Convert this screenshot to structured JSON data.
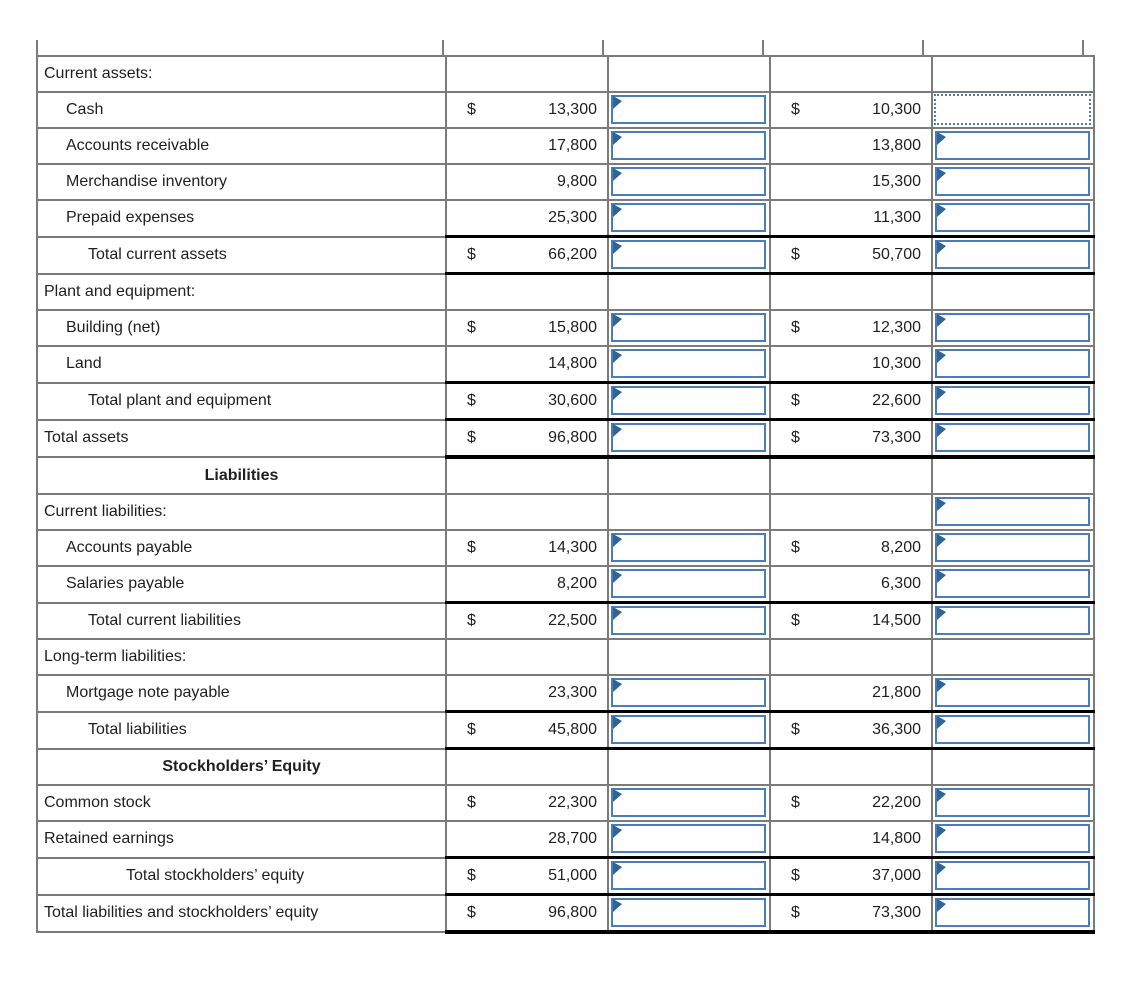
{
  "colors": {
    "grid_line": "#7b7b7b",
    "accounting_rule": "#000000",
    "input_border": "#4a7ebb",
    "input_marker": "#2e6496",
    "active_cell_border": "#4a7ebb",
    "text": "#1f1f1f"
  },
  "table": {
    "columns": [
      "account-label",
      "amount-left",
      "answer-input-left",
      "amount-right",
      "answer-input-right"
    ],
    "rows": [
      {
        "label": "Current assets:",
        "indent": 0,
        "header": false
      },
      {
        "label": "Cash",
        "indent": 1,
        "header": false,
        "left_dollar": "$",
        "left_value": "13,300",
        "mid_input": "solid",
        "right_dollar": "$",
        "right_value": "10,300",
        "end_input": "active"
      },
      {
        "label": "Accounts receivable",
        "indent": 1,
        "header": false,
        "left_value": "17,800",
        "mid_input": "solid",
        "right_value": "13,800",
        "end_input": "solid"
      },
      {
        "label": "Merchandise inventory",
        "indent": 1,
        "header": false,
        "left_value": "9,800",
        "mid_input": "solid",
        "right_value": "15,300",
        "end_input": "solid"
      },
      {
        "label": "Prepaid expenses",
        "indent": 1,
        "header": false,
        "left_value": "25,300",
        "mid_input": "solid",
        "right_value": "11,300",
        "end_input": "solid"
      },
      {
        "label": "Total current assets",
        "indent": 2,
        "header": false,
        "left_dollar": "$",
        "left_value": "66,200",
        "mid_input": "solid",
        "right_dollar": "$",
        "right_value": "50,700",
        "end_input": "solid",
        "top_border": "black",
        "bottom_border": "black"
      },
      {
        "label": "Plant and equipment:",
        "indent": 0,
        "header": false
      },
      {
        "label": "Building (net)",
        "indent": 1,
        "header": false,
        "left_dollar": "$",
        "left_value": "15,800",
        "mid_input": "solid",
        "right_dollar": "$",
        "right_value": "12,300",
        "end_input": "solid"
      },
      {
        "label": "Land",
        "indent": 1,
        "header": false,
        "left_value": "14,800",
        "mid_input": "solid",
        "right_value": "10,300",
        "end_input": "solid"
      },
      {
        "label": "Total plant and equipment",
        "indent": 2,
        "header": false,
        "left_dollar": "$",
        "left_value": "30,600",
        "mid_input": "solid",
        "right_dollar": "$",
        "right_value": "22,600",
        "end_input": "solid",
        "top_border": "black"
      },
      {
        "label": "Total assets",
        "indent": 0,
        "header": false,
        "left_dollar": "$",
        "left_value": "96,800",
        "mid_input": "solid",
        "right_dollar": "$",
        "right_value": "73,300",
        "end_input": "solid",
        "top_border": "black",
        "bottom_border": "thick"
      },
      {
        "label": "Liabilities",
        "indent": 0,
        "header": true
      },
      {
        "label": "Current liabilities:",
        "indent": 0,
        "header": false,
        "end_input": "solid"
      },
      {
        "label": "Accounts payable",
        "indent": 1,
        "header": false,
        "left_dollar": "$",
        "left_value": "14,300",
        "mid_input": "solid",
        "right_dollar": "$",
        "right_value": "8,200",
        "end_input": "solid"
      },
      {
        "label": "Salaries payable",
        "indent": 1,
        "header": false,
        "left_value": "8,200",
        "mid_input": "solid",
        "right_value": "6,300",
        "end_input": "solid"
      },
      {
        "label": "Total current liabilities",
        "indent": 2,
        "header": false,
        "left_dollar": "$",
        "left_value": "22,500",
        "mid_input": "solid",
        "right_dollar": "$",
        "right_value": "14,500",
        "end_input": "solid",
        "top_border": "black"
      },
      {
        "label": "Long-term liabilities:",
        "indent": 0,
        "header": false
      },
      {
        "label": "Mortgage note payable",
        "indent": 1,
        "header": false,
        "left_value": "23,300",
        "mid_input": "solid",
        "right_value": "21,800",
        "end_input": "solid"
      },
      {
        "label": "Total liabilities",
        "indent": 2,
        "header": false,
        "left_dollar": "$",
        "left_value": "45,800",
        "mid_input": "solid",
        "right_dollar": "$",
        "right_value": "36,300",
        "end_input": "solid",
        "top_border": "black",
        "bottom_border": "black"
      },
      {
        "label": "Stockholders’ Equity",
        "indent": 0,
        "header": true
      },
      {
        "label": "Common stock",
        "indent": 0,
        "header": false,
        "left_dollar": "$",
        "left_value": "22,300",
        "mid_input": "solid",
        "right_dollar": "$",
        "right_value": "22,200",
        "end_input": "solid"
      },
      {
        "label": "Retained earnings",
        "indent": 0,
        "header": false,
        "left_value": "28,700",
        "mid_input": "solid",
        "right_value": "14,800",
        "end_input": "solid"
      },
      {
        "label": "Total stockholders’ equity",
        "indent": 3,
        "header": false,
        "left_dollar": "$",
        "left_value": "51,000",
        "mid_input": "solid",
        "right_dollar": "$",
        "right_value": "37,000",
        "end_input": "solid",
        "top_border": "black"
      },
      {
        "label": "Total liabilities and stockholders’ equity",
        "indent": 0,
        "header": false,
        "left_dollar": "$",
        "left_value": "96,800",
        "mid_input": "solid",
        "right_dollar": "$",
        "right_value": "73,300",
        "end_input": "solid",
        "top_border": "black",
        "bottom_border": "thick"
      }
    ]
  }
}
